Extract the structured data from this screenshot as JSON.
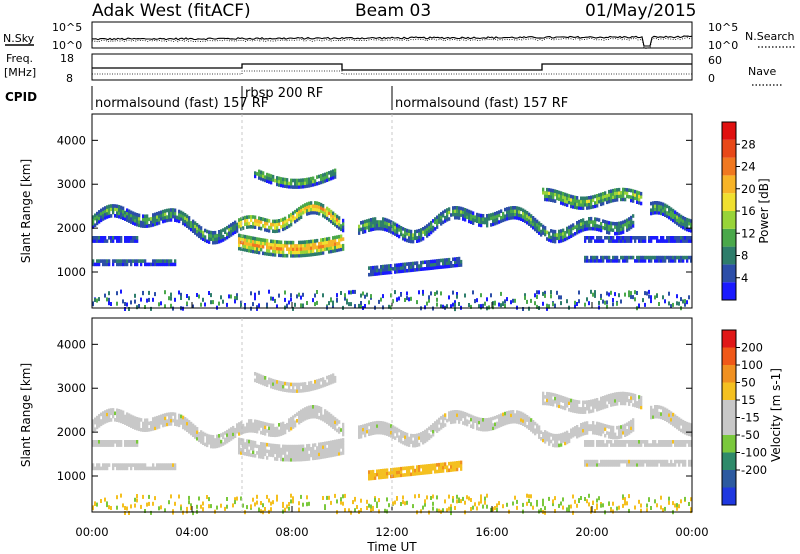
{
  "header": {
    "radar": "Adak West (fitACF)",
    "beam": "Beam 03",
    "date": "01/May/2015"
  },
  "top_panels": {
    "left_sky": "N.Sky",
    "left_sky_ticks": [
      "10^5",
      "10^0"
    ],
    "right_search": "N.Search",
    "right_search_ticks": [
      "10^5",
      "10^0"
    ],
    "left_freq_line1": "Freq.",
    "left_freq_line2": "[MHz]",
    "left_freq_ticks": [
      "18",
      "8"
    ],
    "right_nave": "Nave",
    "right_nave_ticks": [
      "60",
      "0"
    ],
    "cpid_label": "CPID"
  },
  "cpid_segments": [
    {
      "label": "normalsound (fast) 157 RF",
      "start_hour": 0
    },
    {
      "label": "rbsp 200 RF",
      "start_hour": 6
    },
    {
      "label": "normalsound (fast) 157 RF",
      "start_hour": 12
    }
  ],
  "colors": {
    "power": [
      "#1a1aff",
      "#2c4ea8",
      "#2e7d6b",
      "#4aa84a",
      "#98d438",
      "#f0e030",
      "#f7b428",
      "#f07820",
      "#e84818",
      "#e01010"
    ],
    "velocity": [
      "#1f38e0",
      "#2c5aa0",
      "#2e8a6a",
      "#7ac83c",
      "#c8c8c8",
      "#c8c8c8",
      "#f4c020",
      "#f09020",
      "#f05818",
      "#e01818"
    ]
  },
  "chart_data": [
    {
      "type": "heatmap",
      "panel": "power",
      "ylabel": "Slant Range [km]",
      "yticks": [
        1000,
        2000,
        3000,
        4000
      ],
      "ylim": [
        180,
        4600
      ],
      "xlim_hours": [
        0,
        24
      ],
      "colorbar_label": "Power [dB]",
      "colorbar_ticks": [
        "4",
        "8",
        "12",
        "16",
        "20",
        "24",
        "28"
      ],
      "colorbar_range": [
        0,
        32
      ]
    },
    {
      "type": "heatmap",
      "panel": "velocity",
      "ylabel": "Slant Range [km]",
      "yticks": [
        1000,
        2000,
        3000,
        4000
      ],
      "ylim": [
        180,
        4600
      ],
      "xlim_hours": [
        0,
        24
      ],
      "colorbar_label": "Velocity [m s-1]",
      "colorbar_ticks": [
        "200",
        "100",
        "50",
        "15",
        "-15",
        "-50",
        "-100",
        "-200"
      ],
      "xlabel": "Time UT",
      "xticks": [
        "00:00",
        "04:00",
        "08:00",
        "12:00",
        "16:00",
        "20:00",
        "00:00"
      ]
    }
  ]
}
